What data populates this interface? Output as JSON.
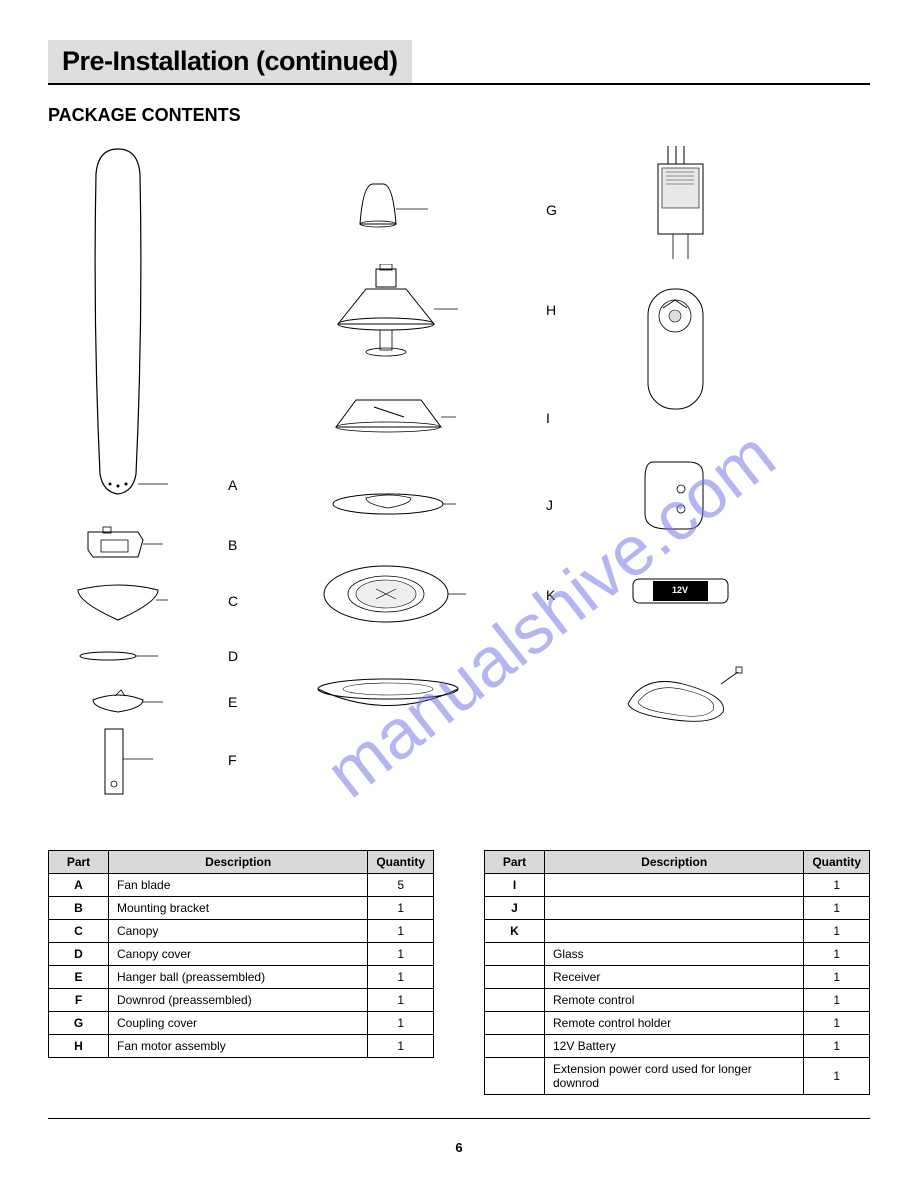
{
  "title": "Pre-Installation (continued)",
  "section": "PACKAGE CONTENTS",
  "watermark": "manualshive.com",
  "labels": {
    "A": "A",
    "B": "B",
    "C": "C",
    "D": "D",
    "E": "E",
    "F": "F",
    "G": "G",
    "H": "H",
    "I": "I",
    "J": "J",
    "K": "K"
  },
  "battery_text": "12V",
  "page_number": "6",
  "table1": {
    "columns": [
      "Part",
      "Description",
      "Quantity"
    ],
    "rows": [
      [
        "A",
        "Fan blade",
        "5"
      ],
      [
        "B",
        "Mounting bracket",
        "1"
      ],
      [
        "C",
        "Canopy",
        "1"
      ],
      [
        "D",
        "Canopy cover",
        "1"
      ],
      [
        "E",
        "Hanger ball (preassembled)",
        "1"
      ],
      [
        "F",
        "Downrod (preassembled)",
        "1"
      ],
      [
        "G",
        "Coupling cover",
        "1"
      ],
      [
        "H",
        "Fan motor assembly",
        "1"
      ]
    ]
  },
  "table2": {
    "columns": [
      "Part",
      "Description",
      "Quantity"
    ],
    "rows": [
      [
        "I",
        "",
        "1"
      ],
      [
        "J",
        "",
        "1"
      ],
      [
        "K",
        "",
        "1"
      ],
      [
        "",
        "Glass",
        "1"
      ],
      [
        "",
        "Receiver",
        "1"
      ],
      [
        "",
        "Remote control",
        "1"
      ],
      [
        "",
        "Remote control holder",
        "1"
      ],
      [
        "",
        "12V Battery",
        "1"
      ],
      [
        "",
        "Extension power cord used for longer downrod",
        "1"
      ]
    ]
  },
  "colors": {
    "header_bg": "#dedede",
    "table_header_bg": "#d9d9d9",
    "watermark": "#7a7ae6",
    "stroke": "#000000"
  }
}
